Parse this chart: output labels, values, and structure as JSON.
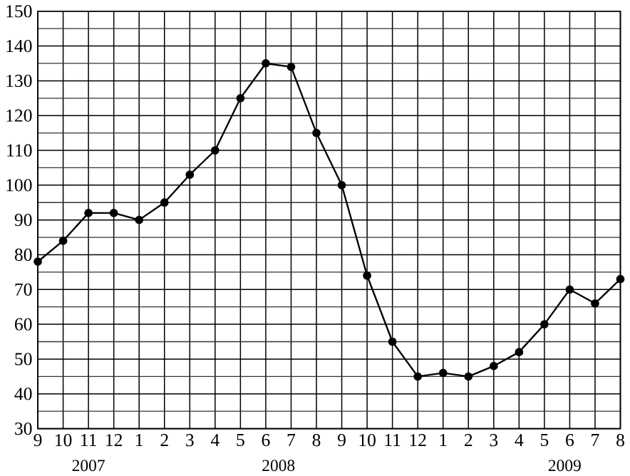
{
  "chart_data": {
    "type": "line",
    "categories": [
      "9",
      "10",
      "11",
      "12",
      "1",
      "2",
      "3",
      "4",
      "5",
      "6",
      "7",
      "8",
      "9",
      "10",
      "11",
      "12",
      "1",
      "2",
      "3",
      "4",
      "5",
      "6",
      "7",
      "8"
    ],
    "values": [
      78,
      84,
      92,
      92,
      90,
      95,
      103,
      110,
      125,
      135,
      134,
      115,
      100,
      74,
      55,
      45,
      46,
      45,
      48,
      52,
      60,
      70,
      66,
      73
    ],
    "color": "#000000",
    "marker": "circle",
    "grid": true,
    "ylim": [
      30,
      150
    ],
    "yticks": [
      30,
      40,
      50,
      60,
      70,
      80,
      90,
      100,
      110,
      120,
      130,
      140,
      150
    ],
    "annotations": [
      "2007",
      "2008",
      "2009"
    ]
  }
}
